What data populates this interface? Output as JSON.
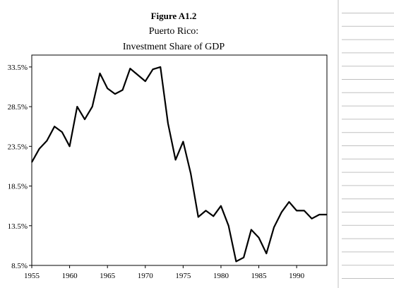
{
  "chart_data": {
    "type": "line",
    "title": "Figure A1.2",
    "subtitle_lines": [
      "Puerto Rico:",
      "Investment Share of GDP"
    ],
    "xlabel": "",
    "ylabel": "",
    "xlim": [
      1955,
      1994
    ],
    "ylim": [
      8.5,
      35
    ],
    "y_ticks": [
      8.5,
      13.5,
      18.5,
      23.5,
      28.5,
      33.5
    ],
    "y_tick_labels": [
      "8.5%",
      "13.5%",
      "18.5%",
      "23.5%",
      "28.5%",
      "33.5%"
    ],
    "x_ticks": [
      1955,
      1960,
      1965,
      1970,
      1975,
      1980,
      1985,
      1990
    ],
    "x_tick_labels": [
      "1955",
      "1960",
      "1965",
      "1970",
      "1975",
      "1980",
      "1985",
      "1990"
    ],
    "grid": false,
    "legend": "none",
    "line_color": "#000000",
    "series": [
      {
        "x": [
          1955,
          1956,
          1957,
          1958,
          1959,
          1960,
          1961,
          1962,
          1963,
          1964,
          1965,
          1966,
          1967,
          1968,
          1969,
          1970,
          1971,
          1972,
          1973,
          1974,
          1975,
          1976,
          1977,
          1978,
          1979,
          1980,
          1981,
          1982,
          1983,
          1984,
          1985,
          1986,
          1987,
          1988,
          1989,
          1990,
          1991,
          1992,
          1993,
          1994
        ],
        "values": [
          21.5,
          23.2,
          24.2,
          26.0,
          25.3,
          23.5,
          28.5,
          26.9,
          28.5,
          32.7,
          30.8,
          30.1,
          30.6,
          33.3,
          32.5,
          31.7,
          33.2,
          33.5,
          26.4,
          21.8,
          24.1,
          20.1,
          14.6,
          15.4,
          14.7,
          16.0,
          13.5,
          9.0,
          9.5,
          13.0,
          12.0,
          10.0,
          13.3,
          15.2,
          16.5,
          15.4,
          15.4,
          14.4,
          14.9,
          14.9
        ]
      }
    ]
  },
  "sidebar": {
    "rule_color": "#c0c0c0",
    "rule_count": 22
  }
}
